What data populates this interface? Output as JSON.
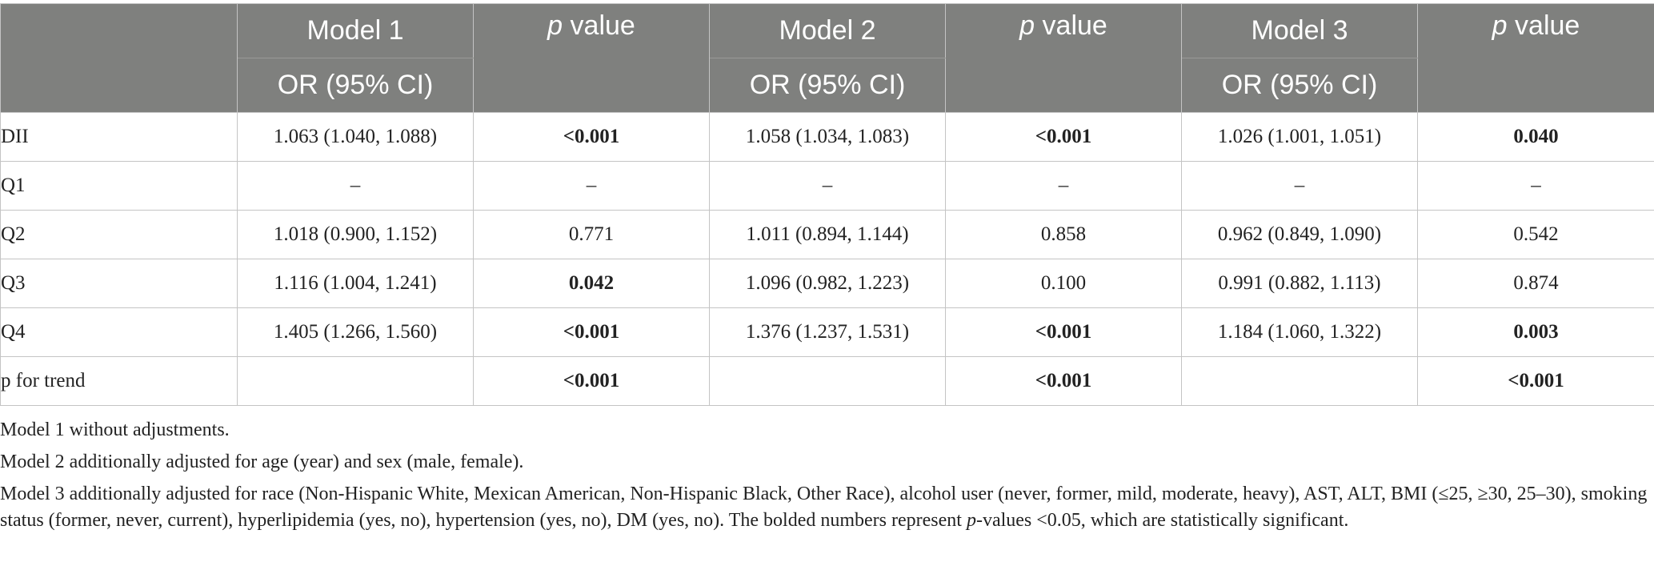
{
  "header": {
    "model1": "Model 1",
    "model2": "Model 2",
    "model3": "Model 3",
    "or_ci": "OR (95% CI)",
    "p_italic": "p",
    "p_rest": " value"
  },
  "rows": [
    {
      "label": "DII",
      "m1": "1.063 (1.040, 1.088)",
      "p1": "<0.001",
      "b1": true,
      "m2": "1.058 (1.034, 1.083)",
      "p2": "<0.001",
      "b2": true,
      "m3": "1.026 (1.001, 1.051)",
      "p3": "0.040",
      "b3": true
    },
    {
      "label": "Q1",
      "m1": "–",
      "p1": "–",
      "b1": false,
      "m2": "–",
      "p2": "–",
      "b2": false,
      "m3": "–",
      "p3": "–",
      "b3": false
    },
    {
      "label": "Q2",
      "m1": "1.018 (0.900, 1.152)",
      "p1": "0.771",
      "b1": false,
      "m2": "1.011 (0.894, 1.144)",
      "p2": "0.858",
      "b2": false,
      "m3": "0.962 (0.849, 1.090)",
      "p3": "0.542",
      "b3": false
    },
    {
      "label": "Q3",
      "m1": "1.116 (1.004, 1.241)",
      "p1": "0.042",
      "b1": true,
      "m2": "1.096 (0.982, 1.223)",
      "p2": "0.100",
      "b2": false,
      "m3": "0.991 (0.882, 1.113)",
      "p3": "0.874",
      "b3": false
    },
    {
      "label": "Q4",
      "m1": "1.405 (1.266, 1.560)",
      "p1": "<0.001",
      "b1": true,
      "m2": "1.376 (1.237, 1.531)",
      "p2": "<0.001",
      "b2": true,
      "m3": "1.184 (1.060, 1.322)",
      "p3": "0.003",
      "b3": true
    },
    {
      "label": "p for trend",
      "m1": "",
      "p1": "<0.001",
      "b1": true,
      "m2": "",
      "p2": "<0.001",
      "b2": true,
      "m3": "",
      "p3": "<0.001",
      "b3": true
    }
  ],
  "notes": {
    "n1": "Model 1 without adjustments.",
    "n2": "Model 2 additionally adjusted for age (year) and sex (male, female).",
    "n3_a": "Model 3 additionally adjusted for race (Non-Hispanic White, Mexican American, Non-Hispanic Black, Other Race), alcohol user (never, former, mild, moderate, heavy), AST, ALT, BMI (≤25, ≥30, 25–30), smoking status (former, never, current), hyperlipidemia (yes, no), hypertension (yes, no), DM (yes, no). The bolded numbers represent ",
    "n3_p": "p",
    "n3_b": "-values <0.05, which are statistically significant."
  }
}
